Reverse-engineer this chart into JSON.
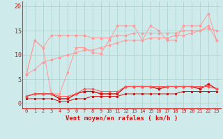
{
  "xlabel": "Vent moyen/en rafales ( km/h )",
  "background_color": "#ceeaea",
  "grid_color": "#aacfcf",
  "x": [
    0,
    1,
    2,
    3,
    4,
    5,
    6,
    7,
    8,
    9,
    10,
    11,
    12,
    13,
    14,
    15,
    16,
    17,
    18,
    19,
    20,
    21,
    22,
    23
  ],
  "line1": [
    6.0,
    13.0,
    11.5,
    2.0,
    2.0,
    6.5,
    11.5,
    11.5,
    10.5,
    10.3,
    13.0,
    16.0,
    16.0,
    16.0,
    13.0,
    16.0,
    15.0,
    13.0,
    13.0,
    16.0,
    16.0,
    16.0,
    18.5,
    13.0
  ],
  "line2": [
    6.0,
    13.0,
    11.5,
    14.0,
    14.0,
    14.0,
    14.0,
    14.0,
    13.5,
    13.5,
    13.5,
    14.0,
    14.0,
    14.5,
    14.5,
    14.5,
    14.5,
    14.5,
    14.5,
    15.0,
    15.0,
    15.0,
    16.0,
    13.0
  ],
  "line3": [
    6.0,
    7.0,
    8.5,
    9.0,
    9.5,
    10.0,
    10.5,
    11.0,
    11.0,
    11.5,
    12.0,
    12.5,
    13.0,
    13.0,
    13.0,
    13.5,
    13.5,
    13.5,
    14.0,
    14.0,
    14.5,
    15.0,
    15.5,
    15.0
  ],
  "line4": [
    1.5,
    2.0,
    2.0,
    2.0,
    1.0,
    1.0,
    2.0,
    2.5,
    2.5,
    2.0,
    2.0,
    2.0,
    3.5,
    3.5,
    3.5,
    3.5,
    3.0,
    3.5,
    3.5,
    3.5,
    3.5,
    3.0,
    4.0,
    3.0
  ],
  "line5": [
    1.5,
    2.0,
    2.0,
    2.0,
    1.0,
    1.0,
    2.0,
    2.5,
    2.5,
    2.0,
    2.0,
    2.0,
    3.5,
    3.5,
    3.5,
    3.5,
    3.0,
    3.5,
    3.5,
    3.5,
    3.5,
    3.0,
    4.0,
    3.0
  ],
  "line6": [
    1.5,
    2.0,
    2.0,
    2.0,
    1.5,
    1.5,
    2.0,
    3.0,
    3.0,
    2.5,
    2.5,
    2.5,
    3.5,
    3.5,
    3.5,
    3.5,
    3.5,
    3.5,
    3.5,
    3.5,
    3.5,
    3.5,
    3.5,
    3.0
  ],
  "line7": [
    1.0,
    1.0,
    1.0,
    1.0,
    0.5,
    0.5,
    1.0,
    1.0,
    1.5,
    1.5,
    1.5,
    1.5,
    2.0,
    2.0,
    2.0,
    2.0,
    2.0,
    2.0,
    2.0,
    2.5,
    2.5,
    2.5,
    2.5,
    2.5
  ],
  "color_light": "#ff9999",
  "color_medium": "#ff5555",
  "color_dark": "#cc1111",
  "ylim": [
    -1,
    21
  ],
  "yticks": [
    0,
    5,
    10,
    15,
    20
  ]
}
